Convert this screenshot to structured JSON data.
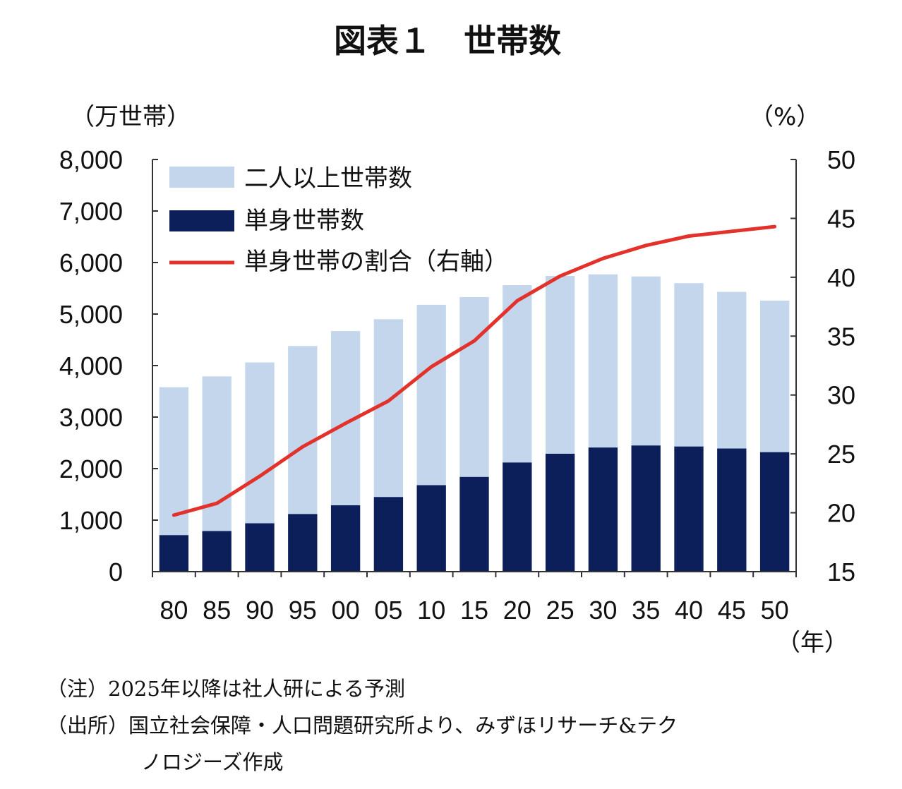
{
  "title": "図表１　世帯数",
  "left_axis_unit": "（万世帯）",
  "right_axis_unit": "（%）",
  "x_axis_unit": "（年）",
  "colors": {
    "multi_person": "#c3d6ec",
    "single": "#0c1f5a",
    "ratio_line": "#e3322b",
    "axis": "#333333"
  },
  "chart_data": {
    "type": "bar",
    "stacked": true,
    "categories": [
      "80",
      "85",
      "90",
      "95",
      "00",
      "05",
      "10",
      "15",
      "20",
      "25",
      "30",
      "35",
      "40",
      "45",
      "50"
    ],
    "series": [
      {
        "name": "単身世帯数",
        "axis": "left",
        "values": [
          710,
          790,
          940,
          1120,
          1290,
          1450,
          1680,
          1840,
          2120,
          2290,
          2410,
          2450,
          2430,
          2390,
          2320
        ]
      },
      {
        "name": "二人以上世帯数",
        "axis": "left",
        "values": [
          2870,
          3000,
          3120,
          3260,
          3380,
          3450,
          3500,
          3490,
          3440,
          3450,
          3360,
          3280,
          3170,
          3040,
          2940
        ]
      },
      {
        "name": "単身世帯の割合（右軸）",
        "type": "line",
        "axis": "right",
        "values": [
          19.8,
          20.8,
          23.1,
          25.6,
          27.6,
          29.5,
          32.4,
          34.6,
          38.0,
          40.1,
          41.6,
          42.7,
          43.5,
          43.9,
          44.3
        ]
      }
    ],
    "left_ylim": [
      0,
      8000
    ],
    "left_yticks": [
      0,
      1000,
      2000,
      3000,
      4000,
      5000,
      6000,
      7000,
      8000
    ],
    "left_ytick_labels": [
      "0",
      "1,000",
      "2,000",
      "3,000",
      "4,000",
      "5,000",
      "6,000",
      "7,000",
      "8,000"
    ],
    "right_ylim": [
      15,
      50
    ],
    "right_yticks": [
      15,
      20,
      25,
      30,
      35,
      40,
      45,
      50
    ],
    "legend_position": "top-left",
    "grid": false
  },
  "notes": [
    {
      "label": "（注）",
      "text": "2025年以降は社人研による予測"
    },
    {
      "label": "（出所）",
      "text": "国立社会保障・人口問題研究所より、みずほリサーチ&テク"
    },
    {
      "label": "",
      "text": "ノロジーズ作成"
    }
  ]
}
